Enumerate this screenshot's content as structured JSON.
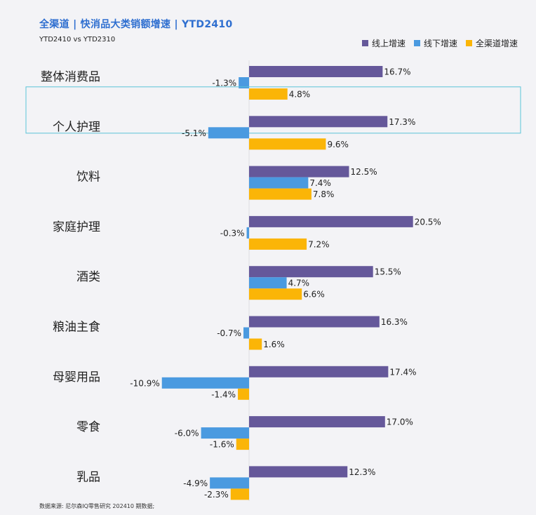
{
  "header": {
    "title": "全渠道 | 快消品大类销额增速 | YTD2410",
    "subtitle": "YTD2410 vs YTD2310"
  },
  "footer": {
    "source": "数据来源: 尼尔森IQ零售研究 202410 期数据;"
  },
  "colors": {
    "online": "#65589a",
    "offline": "#4a9ae0",
    "all_channel": "#fbb507",
    "title": "#2f6fd0",
    "highlight_border": "#5bc4d8"
  },
  "chart_data": {
    "type": "bar",
    "orientation": "horizontal",
    "title": "全渠道 | 快消品大类销额增速 | YTD2410",
    "subtitle": "YTD2410 vs YTD2310",
    "xlabel": "",
    "ylabel": "",
    "unit": "%",
    "legend_position": "top-right",
    "grid": false,
    "highlighted_category": "个人护理",
    "categories": [
      "整体消费品",
      "个人护理",
      "饮料",
      "家庭护理",
      "酒类",
      "粮油主食",
      "母婴用品",
      "零食",
      "乳品"
    ],
    "series": [
      {
        "name": "线上增速",
        "color": "#65589a",
        "values": [
          16.7,
          17.3,
          12.5,
          20.5,
          15.5,
          16.3,
          17.4,
          17.0,
          12.3
        ]
      },
      {
        "name": "线下增速",
        "color": "#4a9ae0",
        "values": [
          -1.3,
          -5.1,
          7.4,
          -0.3,
          4.7,
          -0.7,
          -10.9,
          -6.0,
          -4.9
        ]
      },
      {
        "name": "全渠道增速",
        "color": "#fbb507",
        "values": [
          4.8,
          9.6,
          7.8,
          7.2,
          6.6,
          1.6,
          -1.4,
          -1.6,
          -2.3
        ]
      }
    ]
  }
}
